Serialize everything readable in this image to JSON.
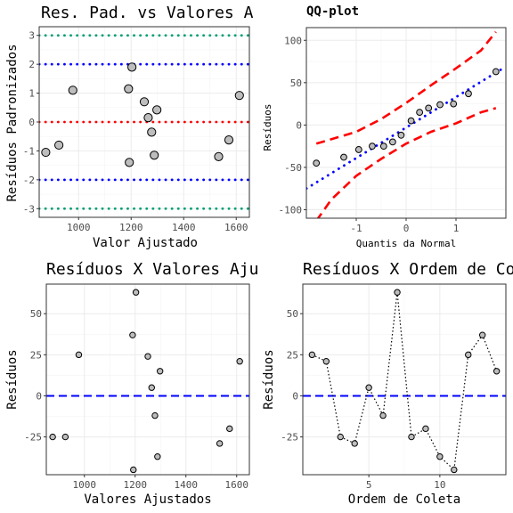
{
  "chart_data": [
    {
      "id": "p1",
      "type": "scatter",
      "title": "Res. Pad. vs Valores A",
      "xlabel": "Valor Ajustado",
      "ylabel": "Resíduos Padronizados",
      "xlim": [
        850,
        1650
      ],
      "ylim": [
        -3.3,
        3.3
      ],
      "xticks": [
        1000,
        1200,
        1400,
        1600
      ],
      "yticks": [
        -3,
        -2,
        -1,
        0,
        1,
        2,
        3
      ],
      "hlines": [
        {
          "y": 3,
          "color": "#009E73",
          "style": "dotted"
        },
        {
          "y": 2,
          "color": "#0000FF",
          "style": "dotted"
        },
        {
          "y": 0,
          "color": "#FF0000",
          "style": "dotted"
        },
        {
          "y": -2,
          "color": "#0000FF",
          "style": "dotted"
        },
        {
          "y": -3,
          "color": "#009E73",
          "style": "dotted"
        }
      ],
      "points": [
        {
          "x": 875,
          "y": -1.05
        },
        {
          "x": 925,
          "y": -0.8
        },
        {
          "x": 978,
          "y": 1.1
        },
        {
          "x": 1190,
          "y": 1.15
        },
        {
          "x": 1193,
          "y": -1.4
        },
        {
          "x": 1203,
          "y": 1.9
        },
        {
          "x": 1250,
          "y": 0.7
        },
        {
          "x": 1265,
          "y": 0.15
        },
        {
          "x": 1278,
          "y": -0.35
        },
        {
          "x": 1288,
          "y": -1.15
        },
        {
          "x": 1298,
          "y": 0.42
        },
        {
          "x": 1533,
          "y": -1.2
        },
        {
          "x": 1572,
          "y": -0.62
        },
        {
          "x": 1612,
          "y": 0.92
        }
      ]
    },
    {
      "id": "p2",
      "type": "scatter",
      "title": "QQ-plot",
      "xlabel": "Quantis da Normal",
      "ylabel": "Resíduos",
      "xlim": [
        -2,
        2
      ],
      "ylim": [
        -110,
        115
      ],
      "xticks": [
        -1,
        0,
        1
      ],
      "yticks": [
        -100,
        -50,
        0,
        50,
        100
      ],
      "reference_line": {
        "intercept": -3,
        "slope": 36,
        "color": "#0000FF",
        "style": "dotted"
      },
      "band_upper": [
        [
          -1.8,
          -22
        ],
        [
          -1.0,
          -8
        ],
        [
          -0.5,
          7
        ],
        [
          0,
          26
        ],
        [
          0.5,
          47
        ],
        [
          1.0,
          67
        ],
        [
          1.5,
          88
        ],
        [
          1.8,
          110
        ]
      ],
      "band_lower": [
        [
          -1.8,
          -113
        ],
        [
          -1.5,
          -88
        ],
        [
          -1.0,
          -60
        ],
        [
          -0.5,
          -40
        ],
        [
          0,
          -22
        ],
        [
          0.5,
          -8
        ],
        [
          1.0,
          2
        ],
        [
          1.5,
          15
        ],
        [
          1.8,
          20
        ]
      ],
      "points": [
        {
          "x": -1.8,
          "y": -45
        },
        {
          "x": -1.25,
          "y": -38
        },
        {
          "x": -0.95,
          "y": -29
        },
        {
          "x": -0.68,
          "y": -25
        },
        {
          "x": -0.45,
          "y": -25
        },
        {
          "x": -0.27,
          "y": -20
        },
        {
          "x": -0.1,
          "y": -12
        },
        {
          "x": 0.1,
          "y": 5
        },
        {
          "x": 0.27,
          "y": 15
        },
        {
          "x": 0.45,
          "y": 20
        },
        {
          "x": 0.68,
          "y": 24
        },
        {
          "x": 0.95,
          "y": 25
        },
        {
          "x": 1.25,
          "y": 37
        },
        {
          "x": 1.8,
          "y": 63
        }
      ]
    },
    {
      "id": "p3",
      "type": "scatter",
      "title": "Resíduos X Valores Aju",
      "xlabel": "Valores Ajustados",
      "ylabel": "Resíduos",
      "xlim": [
        850,
        1650
      ],
      "ylim": [
        -48,
        68
      ],
      "xticks": [
        1000,
        1200,
        1400,
        1600
      ],
      "yticks": [
        -25,
        0,
        25,
        50
      ],
      "hline": {
        "y": 0,
        "color": "#0000FF",
        "style": "dashed"
      },
      "points": [
        {
          "x": 875,
          "y": -25
        },
        {
          "x": 925,
          "y": -25
        },
        {
          "x": 978,
          "y": 25
        },
        {
          "x": 1190,
          "y": 37
        },
        {
          "x": 1193,
          "y": -45
        },
        {
          "x": 1203,
          "y": 63
        },
        {
          "x": 1250,
          "y": 24
        },
        {
          "x": 1265,
          "y": 5
        },
        {
          "x": 1278,
          "y": -12
        },
        {
          "x": 1288,
          "y": -37
        },
        {
          "x": 1298,
          "y": 15
        },
        {
          "x": 1533,
          "y": -29
        },
        {
          "x": 1572,
          "y": -20
        },
        {
          "x": 1612,
          "y": 21
        }
      ]
    },
    {
      "id": "p4",
      "type": "line",
      "title": "Resíduos X Ordem de Co",
      "xlabel": "Ordem de Coleta",
      "ylabel": "Resíduos",
      "xlim": [
        0.35,
        14.65
      ],
      "ylim": [
        -48,
        68
      ],
      "xticks": [
        5,
        10
      ],
      "yticks": [
        -25,
        0,
        25,
        50
      ],
      "hline": {
        "y": 0,
        "color": "#0000FF",
        "style": "dashed"
      },
      "points": [
        {
          "x": 1,
          "y": 25
        },
        {
          "x": 2,
          "y": 21
        },
        {
          "x": 3,
          "y": -25
        },
        {
          "x": 4,
          "y": -29
        },
        {
          "x": 5,
          "y": 5
        },
        {
          "x": 6,
          "y": -12
        },
        {
          "x": 7,
          "y": 63
        },
        {
          "x": 8,
          "y": -25
        },
        {
          "x": 9,
          "y": -20
        },
        {
          "x": 10,
          "y": -37
        },
        {
          "x": 11,
          "y": -45
        },
        {
          "x": 12,
          "y": 25
        },
        {
          "x": 13,
          "y": 37
        },
        {
          "x": 14,
          "y": 15
        }
      ]
    }
  ]
}
